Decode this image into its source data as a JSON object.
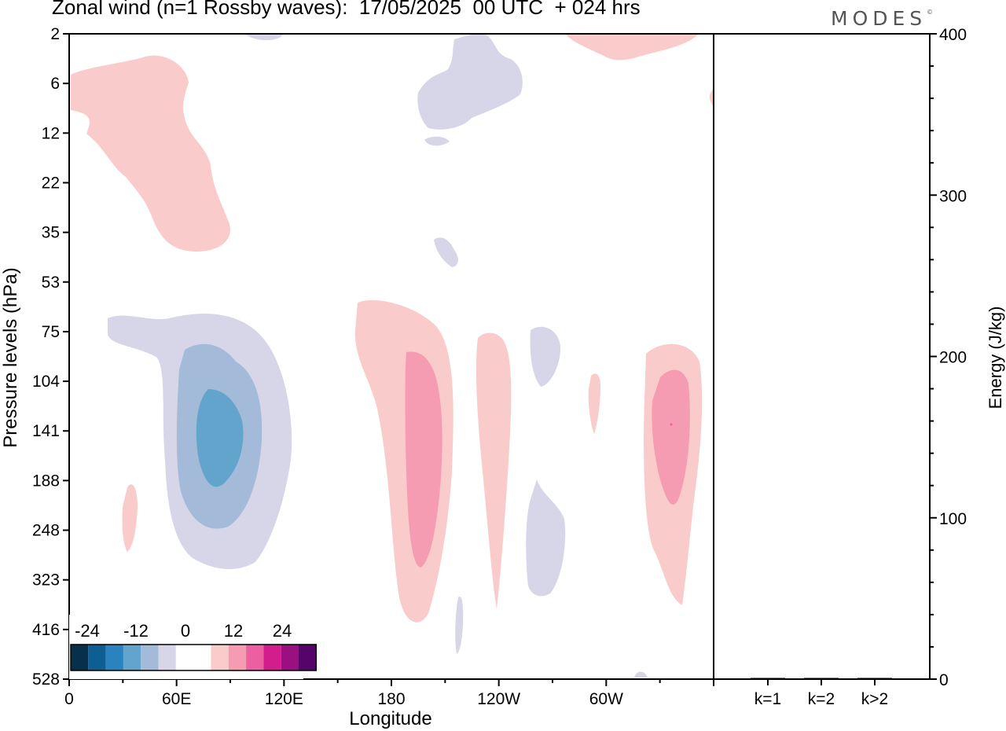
{
  "title": "Zonal wind (n=1 Rossby waves):  17/05/2025  00 UTC  + 024 hrs",
  "brand": "MODES",
  "brand_mark": "©",
  "colors": {
    "neg": [
      "#08304d",
      "#0d5f93",
      "#2a83bf",
      "#63a4cd",
      "#a3bad9",
      "#d6d6e8"
    ],
    "zero": "#ffffff",
    "pos": [
      "#f9cbcb",
      "#f59bb2",
      "#ec5fa0",
      "#d31d8d",
      "#9b0f80",
      "#55046a"
    ]
  },
  "chart_data": [
    {
      "type": "contour",
      "title": "Zonal wind (n=1 Rossby waves):  17/05/2025  00 UTC  + 024 hrs",
      "xlabel": "Longitude",
      "ylabel": "Pressure levels (hPa)",
      "x_ticks": [
        "0",
        "60E",
        "120E",
        "180",
        "120W",
        "60W"
      ],
      "x_tick_lons": [
        0,
        60,
        120,
        180,
        240,
        300
      ],
      "xlim": [
        0,
        360
      ],
      "y_ticks": [
        "2",
        "6",
        "12",
        "22",
        "35",
        "53",
        "75",
        "104",
        "141",
        "188",
        "248",
        "323",
        "416",
        "528"
      ],
      "colorbar": {
        "labels": [
          "-24",
          "-12",
          "0",
          "12",
          "24"
        ],
        "levels": [
          -30,
          -25,
          -20,
          -15,
          -10,
          -5,
          0,
          5,
          10,
          15,
          20,
          25,
          30
        ]
      },
      "features": [
        {
          "sign": "negative",
          "peak": -15,
          "lon": 80,
          "level": "141"
        },
        {
          "sign": "positive",
          "peak": 10,
          "lon": 190,
          "level": "188"
        },
        {
          "sign": "positive",
          "peak": 10,
          "lon": 335,
          "level": "141"
        },
        {
          "sign": "positive",
          "peak": 5,
          "lon": 40,
          "level": "22"
        },
        {
          "sign": "negative",
          "peak": -5,
          "lon": 205,
          "level": "6"
        },
        {
          "sign": "positive",
          "peak": 5,
          "lon": 230,
          "level": "188"
        },
        {
          "sign": "negative",
          "peak": -5,
          "lon": 258,
          "level": "248"
        }
      ]
    },
    {
      "type": "bar",
      "ylabel": "Energy (J/kg)",
      "categories": [
        "k=1",
        "k=2",
        "k>2"
      ],
      "values": [
        0.3,
        0.3,
        0.4
      ],
      "ylim": [
        0,
        400
      ],
      "y_ticks": [
        "0",
        "100",
        "200",
        "300",
        "400"
      ]
    }
  ]
}
